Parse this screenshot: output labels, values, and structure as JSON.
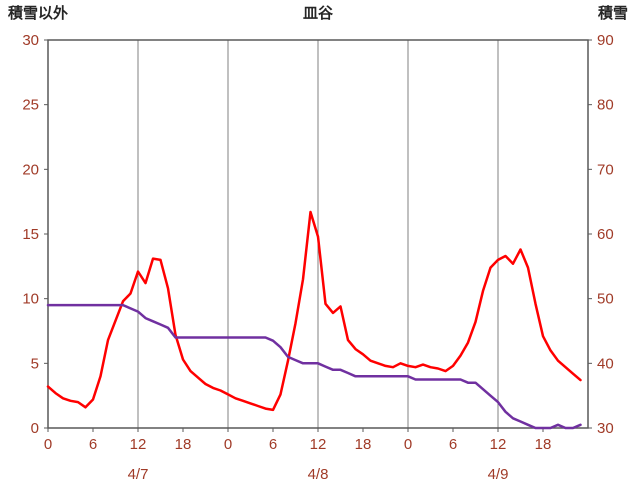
{
  "header": {
    "left_axis_title": "積雪以外",
    "title": "皿谷",
    "right_axis_title": "積雪"
  },
  "chart_data": {
    "type": "line",
    "title": "皿谷",
    "days": [
      "4/7",
      "4/8",
      "4/9"
    ],
    "x_tick_hours": [
      0,
      6,
      12,
      18,
      24,
      30,
      36,
      42,
      48,
      54,
      60,
      66
    ],
    "x_tick_labels": [
      "0",
      "6",
      "12",
      "18",
      "0",
      "6",
      "12",
      "18",
      "0",
      "6",
      "12",
      "18"
    ],
    "gridlines_hours": [
      12,
      24,
      36,
      48,
      60
    ],
    "x_domain_hours": 72,
    "left_axis": {
      "label": "積雪以外",
      "min": 0,
      "max": 30,
      "ticks": [
        0,
        5,
        10,
        15,
        20,
        25,
        30
      ]
    },
    "right_axis": {
      "label": "積雪",
      "min": 30,
      "max": 90,
      "ticks": [
        30,
        40,
        50,
        60,
        70,
        80,
        90
      ]
    },
    "colors": {
      "red_series": "#FF0000",
      "purple_series": "#7030A0",
      "tick_label": "#A03B28",
      "grid": "#808080",
      "frame": "#595959"
    },
    "series": [
      {
        "name": "積雪以外",
        "axis": "left",
        "color_key": "red_series",
        "values": [
          3.2,
          2.7,
          2.3,
          2.1,
          2.0,
          1.6,
          2.2,
          4.0,
          6.8,
          8.3,
          9.8,
          10.4,
          12.1,
          11.2,
          13.1,
          13.0,
          10.8,
          7.2,
          5.3,
          4.4,
          3.9,
          3.4,
          3.1,
          2.9,
          2.6,
          2.3,
          2.1,
          1.9,
          1.7,
          1.5,
          1.4,
          2.6,
          5.2,
          8.1,
          11.5,
          16.7,
          14.8,
          9.6,
          8.9,
          9.4,
          6.8,
          6.1,
          5.7,
          5.2,
          5.0,
          4.8,
          4.7,
          5.0,
          4.8,
          4.7,
          4.9,
          4.7,
          4.6,
          4.4,
          4.8,
          5.6,
          6.6,
          8.2,
          10.6,
          12.4,
          13.0,
          13.3,
          12.7,
          13.8,
          12.4,
          9.6,
          7.1,
          6.0,
          5.2,
          4.7,
          4.2,
          3.7
        ]
      },
      {
        "name": "積雪",
        "axis": "right",
        "color_key": "purple_series",
        "values": [
          49,
          49,
          49,
          49,
          49,
          49,
          49,
          49,
          49,
          49,
          49,
          48.5,
          48,
          47,
          46.5,
          46,
          45.5,
          44,
          44,
          44,
          44,
          44,
          44,
          44,
          44,
          44,
          44,
          44,
          44,
          44,
          43.5,
          42.5,
          41,
          40.5,
          40,
          40,
          40,
          39.5,
          39,
          39,
          38.5,
          38,
          38,
          38,
          38,
          38,
          38,
          38,
          38,
          37.5,
          37.5,
          37.5,
          37.5,
          37.5,
          37.5,
          37.5,
          37,
          37,
          36,
          35,
          34,
          32.5,
          31.5,
          31,
          30.5,
          30,
          30,
          30,
          30.5,
          30,
          30,
          30.5
        ]
      }
    ]
  }
}
